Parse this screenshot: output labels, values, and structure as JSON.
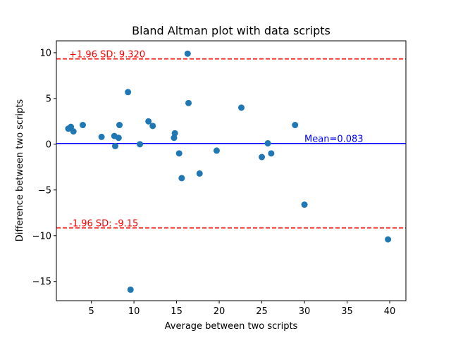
{
  "chart_data": {
    "type": "scatter",
    "title": "Bland Altman plot with data scripts",
    "xlabel": "Average between two scripts",
    "ylabel": "Difference between two scripts",
    "xlim": [
      0.9,
      41.9
    ],
    "ylim": [
      -17.1,
      11.3
    ],
    "xticks": [
      5,
      10,
      15,
      20,
      25,
      30,
      35,
      40
    ],
    "yticks": [
      -15,
      -10,
      -5,
      0,
      5,
      10
    ],
    "grid": false,
    "point_color": "#1f77b4",
    "points": [
      {
        "x": 2.3,
        "y": 1.7
      },
      {
        "x": 2.6,
        "y": 1.9
      },
      {
        "x": 2.9,
        "y": 1.4
      },
      {
        "x": 4.0,
        "y": 2.1
      },
      {
        "x": 6.2,
        "y": 0.8
      },
      {
        "x": 7.7,
        "y": 0.9
      },
      {
        "x": 7.8,
        "y": -0.2
      },
      {
        "x": 8.2,
        "y": 0.7
      },
      {
        "x": 8.3,
        "y": 2.1
      },
      {
        "x": 9.3,
        "y": 5.7
      },
      {
        "x": 9.6,
        "y": -15.9
      },
      {
        "x": 10.7,
        "y": 0.0
      },
      {
        "x": 11.7,
        "y": 2.5
      },
      {
        "x": 12.2,
        "y": 2.0
      },
      {
        "x": 14.7,
        "y": 0.7
      },
      {
        "x": 14.8,
        "y": 1.2
      },
      {
        "x": 15.3,
        "y": -1.0
      },
      {
        "x": 15.6,
        "y": -3.7
      },
      {
        "x": 16.3,
        "y": 9.9
      },
      {
        "x": 16.4,
        "y": 4.5
      },
      {
        "x": 17.7,
        "y": -3.2
      },
      {
        "x": 19.7,
        "y": -0.7
      },
      {
        "x": 22.6,
        "y": 4.0
      },
      {
        "x": 25.0,
        "y": -1.4
      },
      {
        "x": 25.7,
        "y": 0.1
      },
      {
        "x": 26.1,
        "y": -1.0
      },
      {
        "x": 28.9,
        "y": 2.1
      },
      {
        "x": 30.0,
        "y": -6.6
      },
      {
        "x": 39.8,
        "y": -10.4
      }
    ],
    "reference_lines": [
      {
        "y": 9.32,
        "label": "+1.96 SD: 9.320",
        "color": "#ff0000",
        "style": "dashed",
        "label_x": 2.4
      },
      {
        "y": 0.083,
        "label": "Mean=0.083",
        "color": "#0000ff",
        "style": "solid",
        "label_x": 30.0
      },
      {
        "y": -9.15,
        "label": "-1.96 SD: -9.15",
        "color": "#ff0000",
        "style": "dashed",
        "label_x": 2.4
      }
    ]
  }
}
